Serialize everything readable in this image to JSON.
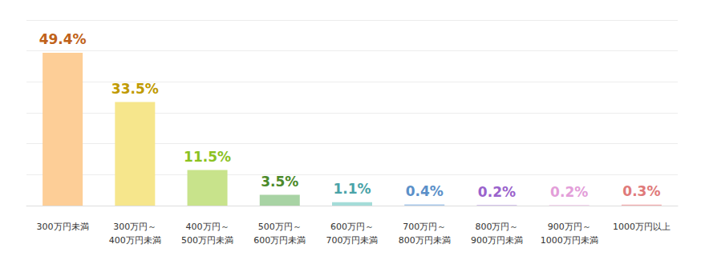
{
  "chart_data": {
    "type": "bar",
    "categories": [
      "300万円未満",
      "300万円～\n400万円未満",
      "400万円～\n500万円未満",
      "500万円～\n600万円未満",
      "600万円～\n700万円未満",
      "700万円～\n800万円未満",
      "800万円～\n900万円未満",
      "900万円～\n1000万円未満",
      "1000万円以上"
    ],
    "values": [
      49.4,
      33.5,
      11.5,
      3.5,
      1.1,
      0.4,
      0.2,
      0.2,
      0.3
    ],
    "value_labels": [
      "49.4%",
      "33.5%",
      "11.5%",
      "3.5%",
      "1.1%",
      "0.4%",
      "0.2%",
      "0.2%",
      "0.3%"
    ],
    "colors": [
      "#fdce97",
      "#f6e68c",
      "#c8e38b",
      "#a8d3a4",
      "#a4dcd8",
      "#a8c8ea",
      "#c9b0e6",
      "#f2c6e8",
      "#f3aeb0"
    ],
    "ylim": [
      0,
      60
    ],
    "yticks": [
      0,
      10,
      20,
      30,
      40,
      50,
      60
    ],
    "grid": true,
    "data_labels": true,
    "tick_labels": "x"
  }
}
